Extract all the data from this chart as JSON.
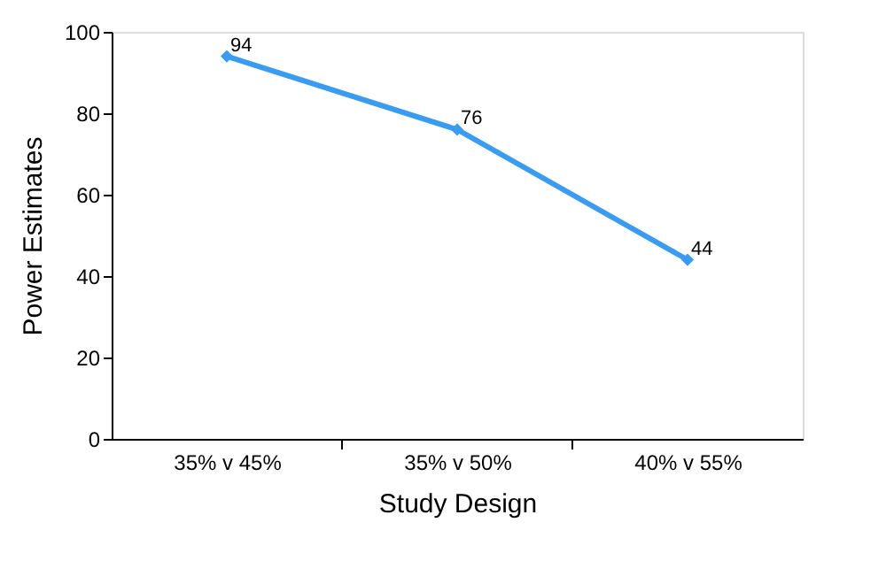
{
  "chart_data": {
    "type": "line",
    "xlabel": "Study Design",
    "ylabel": "Power Estimates",
    "categories": [
      "35% v 45%",
      "35% v 50%",
      "40% v 55%"
    ],
    "series": [
      {
        "color": "#3a9cf0",
        "values": [
          94,
          76,
          44
        ]
      }
    ],
    "ylim": [
      0,
      100
    ],
    "yticks": [
      0,
      20,
      40,
      60,
      80,
      100
    ],
    "grid": false,
    "legend": false,
    "marker": "diamond",
    "line_style": "solid",
    "data_labels": true
  }
}
